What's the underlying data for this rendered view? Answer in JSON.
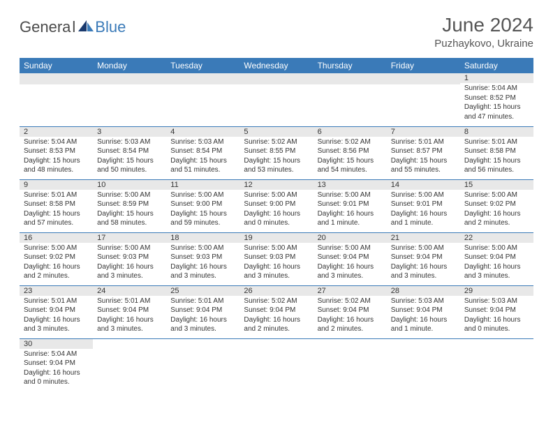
{
  "header": {
    "logo_dark": "Genera",
    "logo_blue": "Blue",
    "month_title": "June 2024",
    "location": "Puzhaykovo, Ukraine"
  },
  "colors": {
    "header_bg": "#3a7ab8",
    "daynum_bg": "#e8e8e8",
    "row_border": "#3a7ab8",
    "logo_blue": "#3a7ab8",
    "logo_dark": "#4a4a4a"
  },
  "daynames": [
    "Sunday",
    "Monday",
    "Tuesday",
    "Wednesday",
    "Thursday",
    "Friday",
    "Saturday"
  ],
  "weeks": [
    [
      null,
      null,
      null,
      null,
      null,
      null,
      {
        "d": "1",
        "sr": "5:04 AM",
        "ss": "8:52 PM",
        "dl": "15 hours and 47 minutes."
      }
    ],
    [
      {
        "d": "2",
        "sr": "5:04 AM",
        "ss": "8:53 PM",
        "dl": "15 hours and 48 minutes."
      },
      {
        "d": "3",
        "sr": "5:03 AM",
        "ss": "8:54 PM",
        "dl": "15 hours and 50 minutes."
      },
      {
        "d": "4",
        "sr": "5:03 AM",
        "ss": "8:54 PM",
        "dl": "15 hours and 51 minutes."
      },
      {
        "d": "5",
        "sr": "5:02 AM",
        "ss": "8:55 PM",
        "dl": "15 hours and 53 minutes."
      },
      {
        "d": "6",
        "sr": "5:02 AM",
        "ss": "8:56 PM",
        "dl": "15 hours and 54 minutes."
      },
      {
        "d": "7",
        "sr": "5:01 AM",
        "ss": "8:57 PM",
        "dl": "15 hours and 55 minutes."
      },
      {
        "d": "8",
        "sr": "5:01 AM",
        "ss": "8:58 PM",
        "dl": "15 hours and 56 minutes."
      }
    ],
    [
      {
        "d": "9",
        "sr": "5:01 AM",
        "ss": "8:58 PM",
        "dl": "15 hours and 57 minutes."
      },
      {
        "d": "10",
        "sr": "5:00 AM",
        "ss": "8:59 PM",
        "dl": "15 hours and 58 minutes."
      },
      {
        "d": "11",
        "sr": "5:00 AM",
        "ss": "9:00 PM",
        "dl": "15 hours and 59 minutes."
      },
      {
        "d": "12",
        "sr": "5:00 AM",
        "ss": "9:00 PM",
        "dl": "16 hours and 0 minutes."
      },
      {
        "d": "13",
        "sr": "5:00 AM",
        "ss": "9:01 PM",
        "dl": "16 hours and 1 minute."
      },
      {
        "d": "14",
        "sr": "5:00 AM",
        "ss": "9:01 PM",
        "dl": "16 hours and 1 minute."
      },
      {
        "d": "15",
        "sr": "5:00 AM",
        "ss": "9:02 PM",
        "dl": "16 hours and 2 minutes."
      }
    ],
    [
      {
        "d": "16",
        "sr": "5:00 AM",
        "ss": "9:02 PM",
        "dl": "16 hours and 2 minutes."
      },
      {
        "d": "17",
        "sr": "5:00 AM",
        "ss": "9:03 PM",
        "dl": "16 hours and 3 minutes."
      },
      {
        "d": "18",
        "sr": "5:00 AM",
        "ss": "9:03 PM",
        "dl": "16 hours and 3 minutes."
      },
      {
        "d": "19",
        "sr": "5:00 AM",
        "ss": "9:03 PM",
        "dl": "16 hours and 3 minutes."
      },
      {
        "d": "20",
        "sr": "5:00 AM",
        "ss": "9:04 PM",
        "dl": "16 hours and 3 minutes."
      },
      {
        "d": "21",
        "sr": "5:00 AM",
        "ss": "9:04 PM",
        "dl": "16 hours and 3 minutes."
      },
      {
        "d": "22",
        "sr": "5:00 AM",
        "ss": "9:04 PM",
        "dl": "16 hours and 3 minutes."
      }
    ],
    [
      {
        "d": "23",
        "sr": "5:01 AM",
        "ss": "9:04 PM",
        "dl": "16 hours and 3 minutes."
      },
      {
        "d": "24",
        "sr": "5:01 AM",
        "ss": "9:04 PM",
        "dl": "16 hours and 3 minutes."
      },
      {
        "d": "25",
        "sr": "5:01 AM",
        "ss": "9:04 PM",
        "dl": "16 hours and 3 minutes."
      },
      {
        "d": "26",
        "sr": "5:02 AM",
        "ss": "9:04 PM",
        "dl": "16 hours and 2 minutes."
      },
      {
        "d": "27",
        "sr": "5:02 AM",
        "ss": "9:04 PM",
        "dl": "16 hours and 2 minutes."
      },
      {
        "d": "28",
        "sr": "5:03 AM",
        "ss": "9:04 PM",
        "dl": "16 hours and 1 minute."
      },
      {
        "d": "29",
        "sr": "5:03 AM",
        "ss": "9:04 PM",
        "dl": "16 hours and 0 minutes."
      }
    ],
    [
      {
        "d": "30",
        "sr": "5:04 AM",
        "ss": "9:04 PM",
        "dl": "16 hours and 0 minutes."
      },
      null,
      null,
      null,
      null,
      null,
      null
    ]
  ],
  "labels": {
    "sunrise": "Sunrise: ",
    "sunset": "Sunset: ",
    "daylight": "Daylight: "
  }
}
